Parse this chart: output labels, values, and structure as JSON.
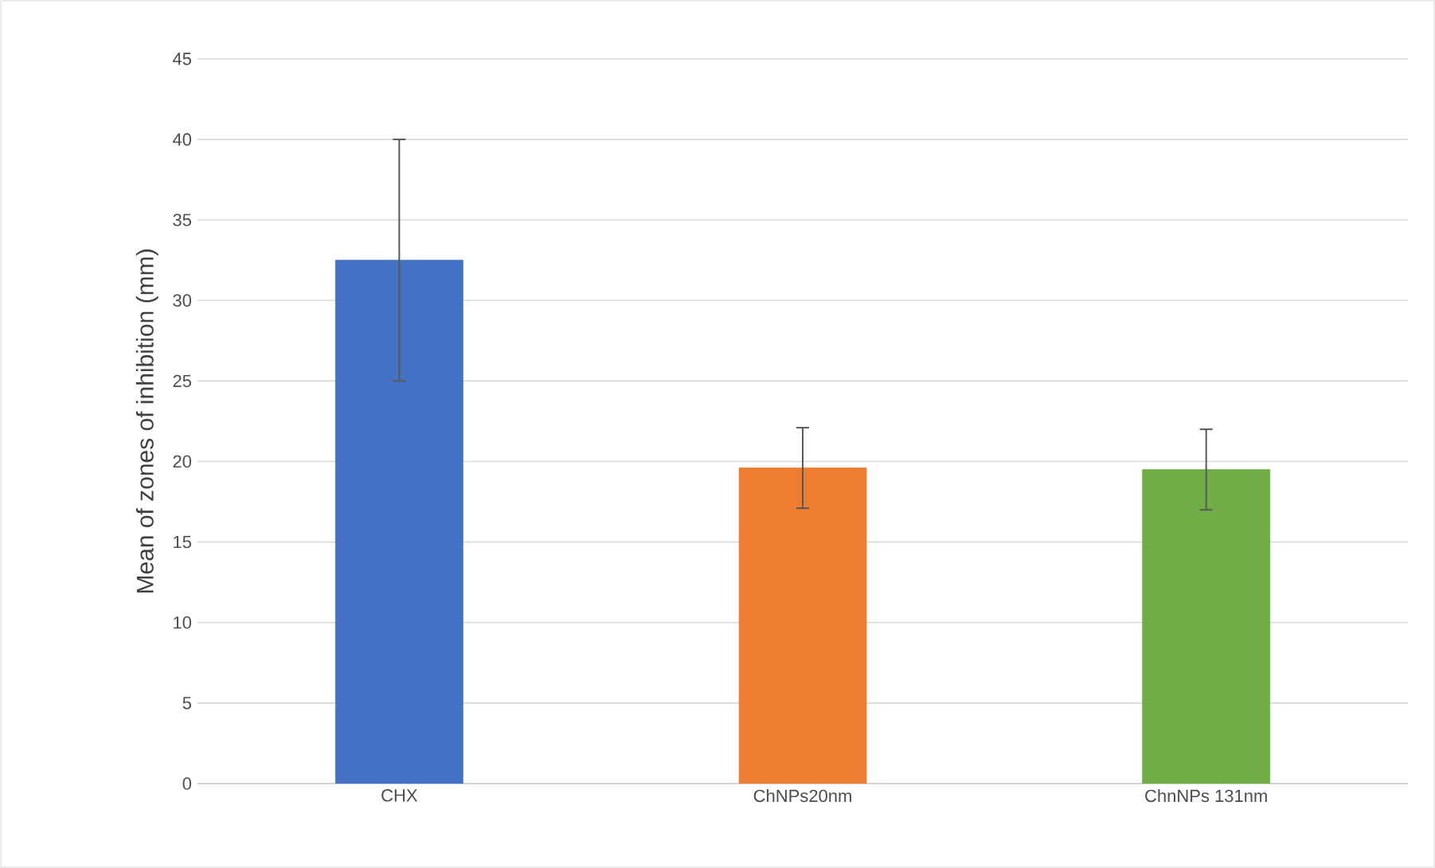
{
  "chart_data": {
    "type": "bar",
    "ylabel": "Mean of zones of inhibition (mm)",
    "categories": [
      "CHX",
      "ChNPs20nm",
      "ChnNPs 131nm"
    ],
    "values": [
      32.5,
      19.6,
      19.5
    ],
    "colors": [
      "#4472c4",
      "#ed7d31",
      "#70ad47"
    ],
    "errors": [
      7.5,
      2.5,
      2.5
    ],
    "ylim": [
      0,
      45
    ],
    "yticks": [
      0,
      5,
      10,
      15,
      20,
      25,
      30,
      35,
      40,
      45
    ],
    "grid": "y"
  }
}
